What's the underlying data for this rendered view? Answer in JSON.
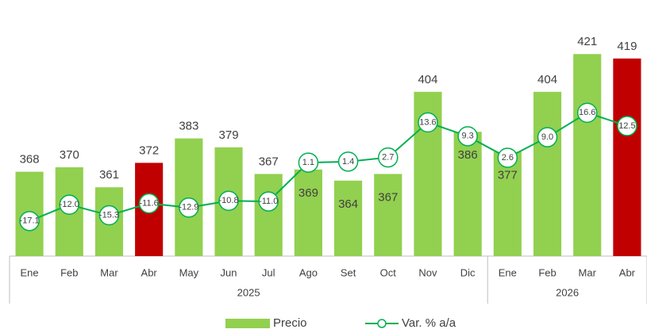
{
  "chart_data": {
    "type": "bar-line",
    "groups": [
      {
        "name": "2025",
        "categories": [
          "Ene",
          "Feb",
          "Mar",
          "Abr",
          "May",
          "Jun",
          "Jul",
          "Ago",
          "Set",
          "Oct",
          "Nov",
          "Dic"
        ]
      },
      {
        "name": "2026",
        "categories": [
          "Ene",
          "Feb",
          "Mar",
          "Abr"
        ]
      }
    ],
    "series": [
      {
        "name": "Precio",
        "type": "bar",
        "color": "#92d050",
        "colors": [
          "#92d050",
          "#92d050",
          "#92d050",
          "#c00000",
          "#92d050",
          "#92d050",
          "#92d050",
          "#92d050",
          "#92d050",
          "#92d050",
          "#92d050",
          "#92d050",
          "#92d050",
          "#92d050",
          "#92d050",
          "#c00000"
        ],
        "values": [
          368,
          370,
          361,
          372,
          383,
          379,
          367,
          369,
          364,
          367,
          404,
          386,
          377,
          404,
          421,
          419
        ]
      },
      {
        "name": "Var. % a/a",
        "type": "line",
        "axis": "y2",
        "color": "#00b050",
        "values": [
          -17.1,
          -12.0,
          -15.3,
          -11.6,
          -12.9,
          -10.8,
          -11.0,
          1.1,
          1.4,
          2.7,
          13.6,
          9.3,
          2.6,
          9.0,
          16.6,
          12.5
        ],
        "value_labels": [
          "-17.1",
          "-12.0",
          "-15.3",
          "-11.6",
          "-12.9",
          "-10.8",
          "-11.0",
          "1.1",
          "1.4",
          "2.7",
          "13.6",
          "9.3",
          "2.6",
          "9.0",
          "16.6",
          "12.5"
        ]
      }
    ],
    "ylim": [
      330,
      440
    ],
    "y2lim": [
      -28,
      48
    ],
    "legend": "bottom"
  }
}
